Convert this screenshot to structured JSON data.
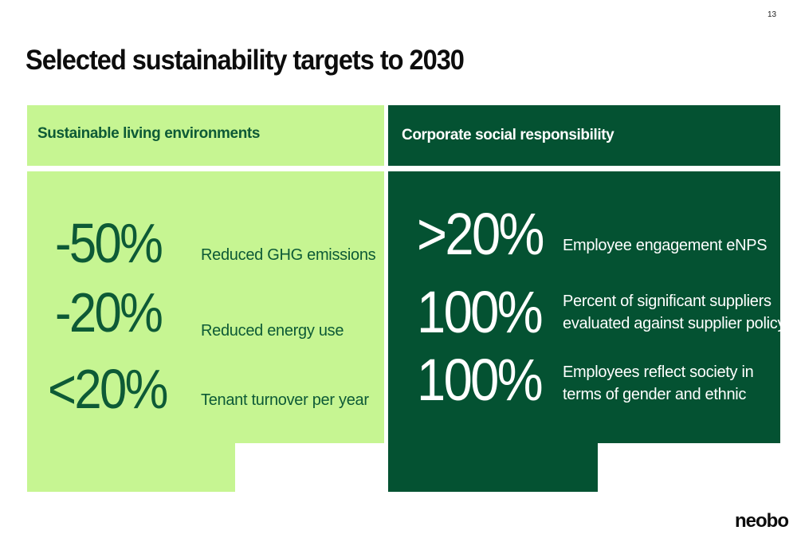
{
  "page_number": "13",
  "title": "Selected sustainability targets to 2030",
  "left_panel": {
    "heading": "Sustainable living environments",
    "items": [
      {
        "value": "-50%",
        "label": "Reduced GHG emissions"
      },
      {
        "value": "-20%",
        "label": "Reduced energy use"
      },
      {
        "value": "<20%",
        "label": "Tenant turnover per year"
      }
    ]
  },
  "right_panel": {
    "heading": "Corporate social responsibility",
    "items": [
      {
        "value": ">20%",
        "label_line1": "Employee engagement eNPS",
        "label_line2": ""
      },
      {
        "value": "100%",
        "label_line1": "Percent of significant suppliers",
        "label_line2": "evaluated against supplier policy"
      },
      {
        "value": "100%",
        "label_line1": "Employees reflect society in",
        "label_line2": "terms of gender and ethnic"
      }
    ]
  },
  "logo_text": "neobo",
  "colors": {
    "light_green": "#c6f592",
    "dark_green": "#045232",
    "text_green": "#0d5a36"
  }
}
